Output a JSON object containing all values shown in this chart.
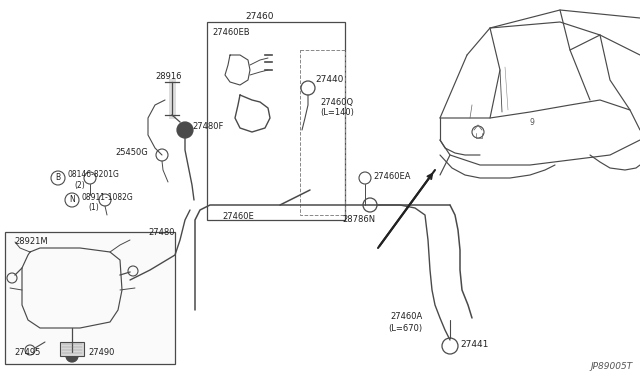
{
  "bg_color": "#ffffff",
  "line_color": "#4a4a4a",
  "text_color": "#222222",
  "diagram_code": "JP89005T",
  "figsize": [
    6.4,
    3.72
  ],
  "dpi": 100,
  "xlim": [
    0,
    640
  ],
  "ylim": [
    0,
    372
  ]
}
